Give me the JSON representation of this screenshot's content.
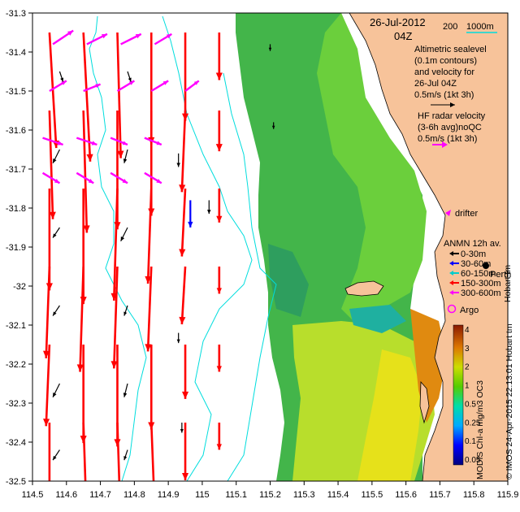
{
  "header": {
    "date": "26-Jul-2012",
    "time": "04Z"
  },
  "bathymetry_legend": {
    "label_200": "200",
    "label_1000": "1000m"
  },
  "legend": {
    "altimetry_lines": [
      "Altimetric sealevel",
      "(0.1m contours)",
      "and velocity for",
      "26-Jul 04Z",
      "0.5m/s (1kt 3h)"
    ],
    "hf_radar_lines": [
      "HF radar velocity",
      "(3-6h avg)noQC",
      "0.5m/s (1kt 3h)"
    ],
    "drifter": "drifter",
    "anmn_title": "ANMN 12h av.",
    "anmn_items": [
      {
        "label": "0-30m",
        "color": "#000000"
      },
      {
        "label": "30-60m",
        "color": "#0000ff"
      },
      {
        "label": "60-150m",
        "color": "#00cccc"
      },
      {
        "label": "150-300m",
        "color": "#ff0000"
      },
      {
        "label": "300-600m",
        "color": "#ff00ff"
      }
    ],
    "argo": "Argo",
    "place": "Perth",
    "hobart_credit": "Hobart tm"
  },
  "colorbar": {
    "ticks": [
      "4",
      "3",
      "2",
      "1",
      "0.5",
      "0.25",
      "0.1",
      "0.05"
    ],
    "label": "MODIS Chl-a mg/m3 OC3"
  },
  "credit": "© IMOS 24-Apr-2015 22:13:01 Hobart tm",
  "colors": {
    "land": "#f7c39a",
    "contour": "#00dddd",
    "altimetry_arrow": "#ff0000",
    "hf_arrow": "#ff00ff",
    "anmn_arrow": "#000000",
    "drifter_arrow": "#0000ff"
  },
  "chart_data": {
    "type": "map",
    "x_ticks": [
      "114.5",
      "114.6",
      "114.7",
      "114.8",
      "114.9",
      "115",
      "115.1",
      "115.2",
      "115.3",
      "115.4",
      "115.5",
      "115.6",
      "115.7",
      "115.8",
      "115.9"
    ],
    "y_ticks": [
      "-31.3",
      "-31.4",
      "-31.5",
      "-31.6",
      "-31.7",
      "-31.8",
      "-31.9",
      "-32",
      "-32.1",
      "-32.2",
      "-32.3",
      "-32.4",
      "-32.5"
    ],
    "lon_range": [
      114.5,
      115.9
    ],
    "lat_range": [
      -32.5,
      -31.3
    ],
    "altimetry_arrows": [
      {
        "lon": 114.55,
        "lat": -31.35,
        "u": 0.02,
        "v": -0.34
      },
      {
        "lon": 114.55,
        "lat": -31.55,
        "u": 0.01,
        "v": -0.32
      },
      {
        "lon": 114.55,
        "lat": -31.75,
        "u": 0.0,
        "v": -0.3
      },
      {
        "lon": 114.55,
        "lat": -31.95,
        "u": -0.01,
        "v": -0.27
      },
      {
        "lon": 114.55,
        "lat": -32.15,
        "u": -0.01,
        "v": -0.24
      },
      {
        "lon": 114.55,
        "lat": -32.35,
        "u": 0.0,
        "v": -0.22
      },
      {
        "lon": 114.65,
        "lat": -31.35,
        "u": 0.02,
        "v": -0.38
      },
      {
        "lon": 114.65,
        "lat": -31.55,
        "u": 0.01,
        "v": -0.36
      },
      {
        "lon": 114.65,
        "lat": -31.75,
        "u": 0.0,
        "v": -0.34
      },
      {
        "lon": 114.65,
        "lat": -31.95,
        "u": -0.01,
        "v": -0.31
      },
      {
        "lon": 114.65,
        "lat": -32.15,
        "u": 0.0,
        "v": -0.29
      },
      {
        "lon": 114.65,
        "lat": -32.35,
        "u": 0.01,
        "v": -0.3
      },
      {
        "lon": 114.75,
        "lat": -31.35,
        "u": 0.01,
        "v": -0.37
      },
      {
        "lon": 114.75,
        "lat": -31.55,
        "u": 0.0,
        "v": -0.35
      },
      {
        "lon": 114.75,
        "lat": -31.75,
        "u": -0.01,
        "v": -0.33
      },
      {
        "lon": 114.75,
        "lat": -31.95,
        "u": -0.01,
        "v": -0.3
      },
      {
        "lon": 114.75,
        "lat": -32.15,
        "u": 0.0,
        "v": -0.3
      },
      {
        "lon": 114.75,
        "lat": -32.35,
        "u": 0.01,
        "v": -0.31
      },
      {
        "lon": 114.85,
        "lat": -31.35,
        "u": 0.0,
        "v": -0.33
      },
      {
        "lon": 114.85,
        "lat": -31.55,
        "u": 0.0,
        "v": -0.31
      },
      {
        "lon": 114.85,
        "lat": -31.75,
        "u": -0.01,
        "v": -0.28
      },
      {
        "lon": 114.85,
        "lat": -31.95,
        "u": -0.01,
        "v": -0.25
      },
      {
        "lon": 114.85,
        "lat": -32.15,
        "u": 0.0,
        "v": -0.25
      },
      {
        "lon": 114.85,
        "lat": -32.35,
        "u": 0.01,
        "v": -0.26
      },
      {
        "lon": 114.95,
        "lat": -31.35,
        "u": 0.0,
        "v": -0.26
      },
      {
        "lon": 114.95,
        "lat": -31.55,
        "u": -0.01,
        "v": -0.24
      },
      {
        "lon": 114.95,
        "lat": -31.75,
        "u": -0.01,
        "v": -0.2
      },
      {
        "lon": 114.95,
        "lat": -31.95,
        "u": -0.01,
        "v": -0.17
      },
      {
        "lon": 114.95,
        "lat": -32.15,
        "u": 0.0,
        "v": -0.16
      },
      {
        "lon": 114.95,
        "lat": -32.35,
        "u": 0.0,
        "v": -0.17
      },
      {
        "lon": 115.05,
        "lat": -31.35,
        "u": 0.0,
        "v": -0.14
      },
      {
        "lon": 115.05,
        "lat": -31.55,
        "u": 0.0,
        "v": -0.12
      },
      {
        "lon": 115.05,
        "lat": -31.75,
        "u": 0.0,
        "v": -0.1
      },
      {
        "lon": 115.05,
        "lat": -31.95,
        "u": 0.0,
        "v": -0.08
      },
      {
        "lon": 115.05,
        "lat": -32.15,
        "u": 0.0,
        "v": -0.08
      },
      {
        "lon": 115.05,
        "lat": -32.35,
        "u": 0.0,
        "v": -0.08
      }
    ],
    "hf_arrows": [
      {
        "lon": 114.56,
        "lat": -31.38,
        "u": 0.06,
        "v": 0.04
      },
      {
        "lon": 114.66,
        "lat": -31.38,
        "u": 0.06,
        "v": 0.03
      },
      {
        "lon": 114.76,
        "lat": -31.38,
        "u": 0.06,
        "v": 0.03
      },
      {
        "lon": 114.86,
        "lat": -31.38,
        "u": 0.05,
        "v": 0.03
      },
      {
        "lon": 114.55,
        "lat": -31.5,
        "u": 0.05,
        "v": 0.03
      },
      {
        "lon": 114.65,
        "lat": -31.5,
        "u": 0.05,
        "v": 0.02
      },
      {
        "lon": 114.75,
        "lat": -31.5,
        "u": 0.05,
        "v": 0.03
      },
      {
        "lon": 114.85,
        "lat": -31.5,
        "u": 0.05,
        "v": 0.03
      },
      {
        "lon": 114.95,
        "lat": -31.5,
        "u": 0.04,
        "v": 0.03
      },
      {
        "lon": 114.53,
        "lat": -31.62,
        "u": 0.06,
        "v": -0.02
      },
      {
        "lon": 114.63,
        "lat": -31.62,
        "u": 0.06,
        "v": -0.02
      },
      {
        "lon": 114.73,
        "lat": -31.62,
        "u": 0.05,
        "v": -0.02
      },
      {
        "lon": 114.83,
        "lat": -31.62,
        "u": 0.05,
        "v": -0.02
      },
      {
        "lon": 114.53,
        "lat": -31.71,
        "u": 0.05,
        "v": -0.03
      },
      {
        "lon": 114.63,
        "lat": -31.71,
        "u": 0.05,
        "v": -0.03
      },
      {
        "lon": 114.73,
        "lat": -31.71,
        "u": 0.05,
        "v": -0.03
      },
      {
        "lon": 114.83,
        "lat": -31.71,
        "u": 0.05,
        "v": -0.03
      }
    ],
    "anmn_arrows": [
      {
        "lon": 114.58,
        "lat": -31.45,
        "u": 0.01,
        "v": -0.03
      },
      {
        "lon": 114.78,
        "lat": -31.45,
        "u": 0.01,
        "v": -0.03
      },
      {
        "lon": 114.58,
        "lat": -31.65,
        "u": -0.02,
        "v": -0.04
      },
      {
        "lon": 114.78,
        "lat": -31.65,
        "u": -0.01,
        "v": -0.04
      },
      {
        "lon": 114.58,
        "lat": -31.85,
        "u": -0.02,
        "v": -0.03
      },
      {
        "lon": 114.78,
        "lat": -31.85,
        "u": -0.02,
        "v": -0.04
      },
      {
        "lon": 114.58,
        "lat": -32.05,
        "u": -0.02,
        "v": -0.03
      },
      {
        "lon": 114.78,
        "lat": -32.05,
        "u": -0.01,
        "v": -0.03
      },
      {
        "lon": 114.58,
        "lat": -32.25,
        "u": -0.02,
        "v": -0.04
      },
      {
        "lon": 114.78,
        "lat": -32.25,
        "u": -0.01,
        "v": -0.04
      },
      {
        "lon": 114.58,
        "lat": -32.42,
        "u": -0.02,
        "v": -0.03
      },
      {
        "lon": 114.78,
        "lat": -32.42,
        "u": -0.01,
        "v": -0.03
      },
      {
        "lon": 114.93,
        "lat": -31.66,
        "u": 0.0,
        "v": -0.04
      },
      {
        "lon": 115.02,
        "lat": -31.78,
        "u": 0.0,
        "v": -0.04
      },
      {
        "lon": 114.93,
        "lat": -32.12,
        "u": 0.0,
        "v": -0.03
      },
      {
        "lon": 114.94,
        "lat": -32.35,
        "u": 0.0,
        "v": -0.03
      },
      {
        "lon": 115.21,
        "lat": -31.58,
        "u": 0.0,
        "v": -0.02
      },
      {
        "lon": 115.2,
        "lat": -31.38,
        "u": 0.0,
        "v": -0.02
      }
    ],
    "drifter_arrows": [
      {
        "lon": 114.965,
        "lat": -31.78,
        "u": 0.0,
        "v": -0.08
      }
    ]
  }
}
